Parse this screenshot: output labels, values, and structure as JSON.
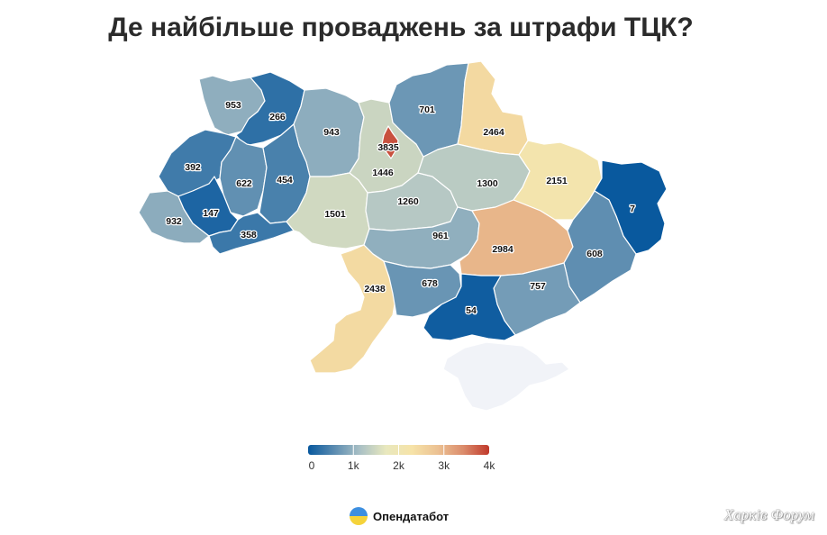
{
  "title": "Де найбільше проваджень за штрафи ТЦК?",
  "regions": [
    {
      "id": "volyn",
      "value": 953
    },
    {
      "id": "rivne",
      "value": 266
    },
    {
      "id": "zhytomyr",
      "value": 943
    },
    {
      "id": "kyiv-oblast",
      "value": 1446
    },
    {
      "id": "kyiv-city",
      "value": 3835
    },
    {
      "id": "chernihiv",
      "value": 701
    },
    {
      "id": "sumy",
      "value": 2464
    },
    {
      "id": "lviv",
      "value": 392
    },
    {
      "id": "ternopil",
      "value": 622
    },
    {
      "id": "khmelnytskyi",
      "value": 454
    },
    {
      "id": "zakarpattia",
      "value": 932
    },
    {
      "id": "ivano-frankivsk",
      "value": 147
    },
    {
      "id": "chernivtsi",
      "value": 358
    },
    {
      "id": "vinnytsia",
      "value": 1501
    },
    {
      "id": "cherkasy",
      "value": 1260
    },
    {
      "id": "poltava",
      "value": 1300
    },
    {
      "id": "kharkiv",
      "value": 2151
    },
    {
      "id": "luhansk",
      "value": 7
    },
    {
      "id": "kirovohrad",
      "value": 961
    },
    {
      "id": "dnipropetrovsk",
      "value": 2984
    },
    {
      "id": "donetsk",
      "value": 608
    },
    {
      "id": "odesa",
      "value": 2438
    },
    {
      "id": "mykolaiv",
      "value": 678
    },
    {
      "id": "zaporizhzhia",
      "value": 757
    },
    {
      "id": "kherson",
      "value": 54
    },
    {
      "id": "crimea",
      "value": null
    }
  ],
  "colors": {
    "no_data": "#f1f3f8",
    "scale": [
      "#08589e",
      "#5a8bb0",
      "#a9c0c5",
      "#e8e8be",
      "#f6e3a8",
      "#ecc293",
      "#db8c6c",
      "#c0392b"
    ]
  },
  "legend": {
    "min": 0,
    "max": 4000,
    "ticks": [
      "0",
      "1k",
      "2k",
      "3k",
      "4k"
    ]
  },
  "brand": {
    "name": "Опендатабот"
  },
  "watermark": "Харків Форум"
}
